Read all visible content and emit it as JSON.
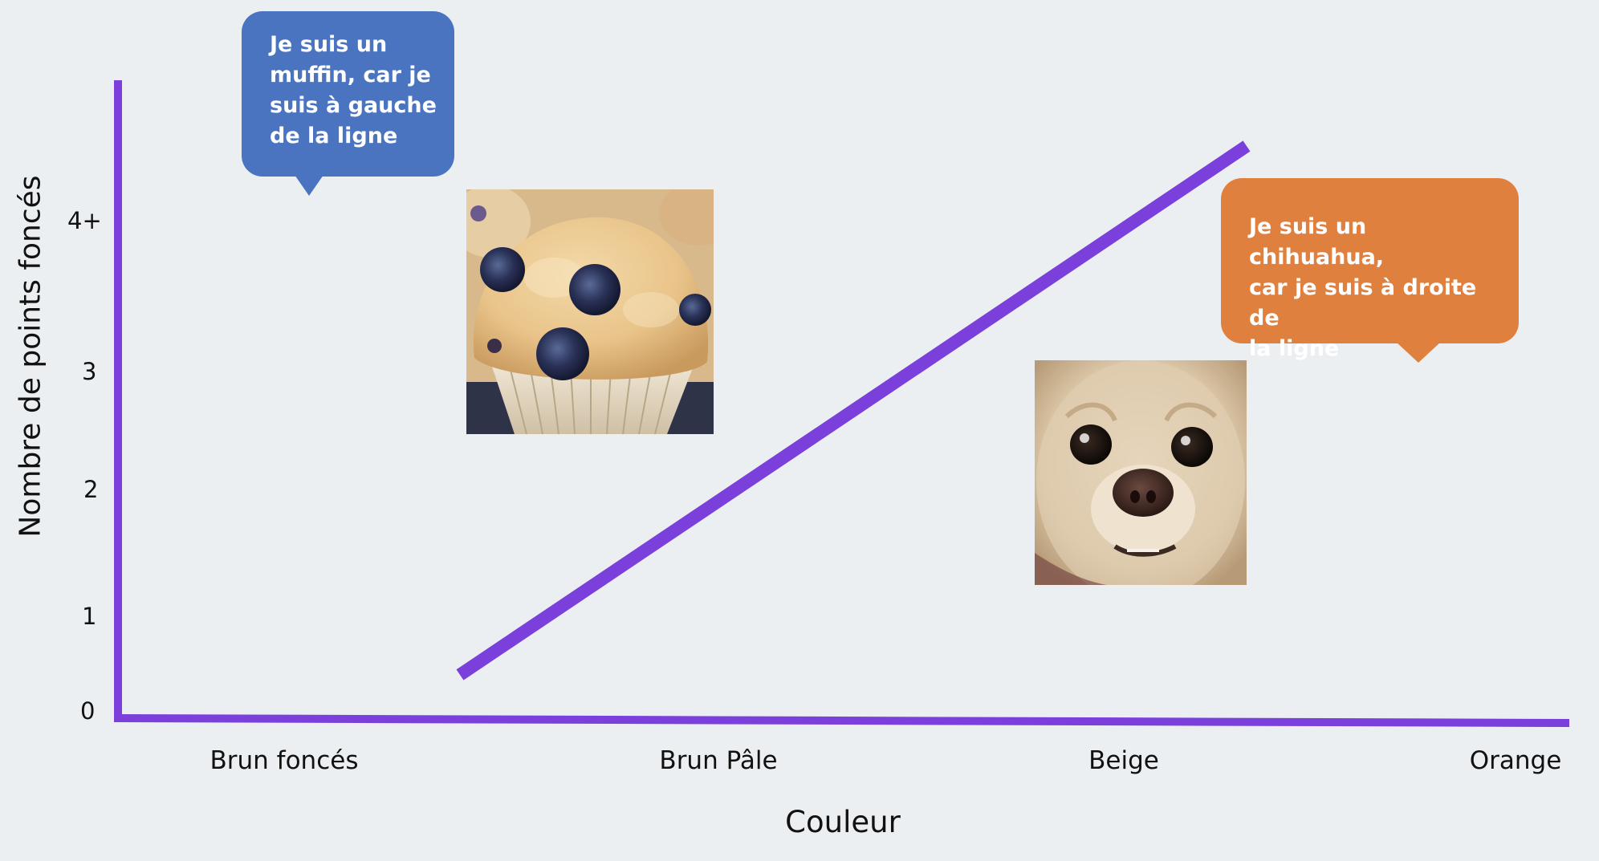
{
  "diagram": {
    "y_axis_title": "Nombre de points foncés",
    "x_axis_title": "Couleur",
    "y_ticks": [
      "0",
      "1",
      "2",
      "3",
      "4+"
    ],
    "x_categories": [
      "Brun foncés",
      "Brun Pâle",
      "Beige",
      "Orange"
    ],
    "axis_color": "#7B3FDC",
    "divider_color": "#7B3FDC",
    "bubbles": {
      "muffin": {
        "lines": [
          "Je suis un",
          "muffin, car je",
          "suis à gauche",
          "de la ligne"
        ],
        "color": "#4A74BF"
      },
      "chihuahua": {
        "lines": [
          "Je suis un chihuahua,",
          "car je suis à droite de",
          "la ligne"
        ],
        "color": "#E0803F"
      }
    },
    "images": {
      "muffin": "blueberry-muffin-photo",
      "chihuahua": "chihuahua-face-photo"
    }
  }
}
